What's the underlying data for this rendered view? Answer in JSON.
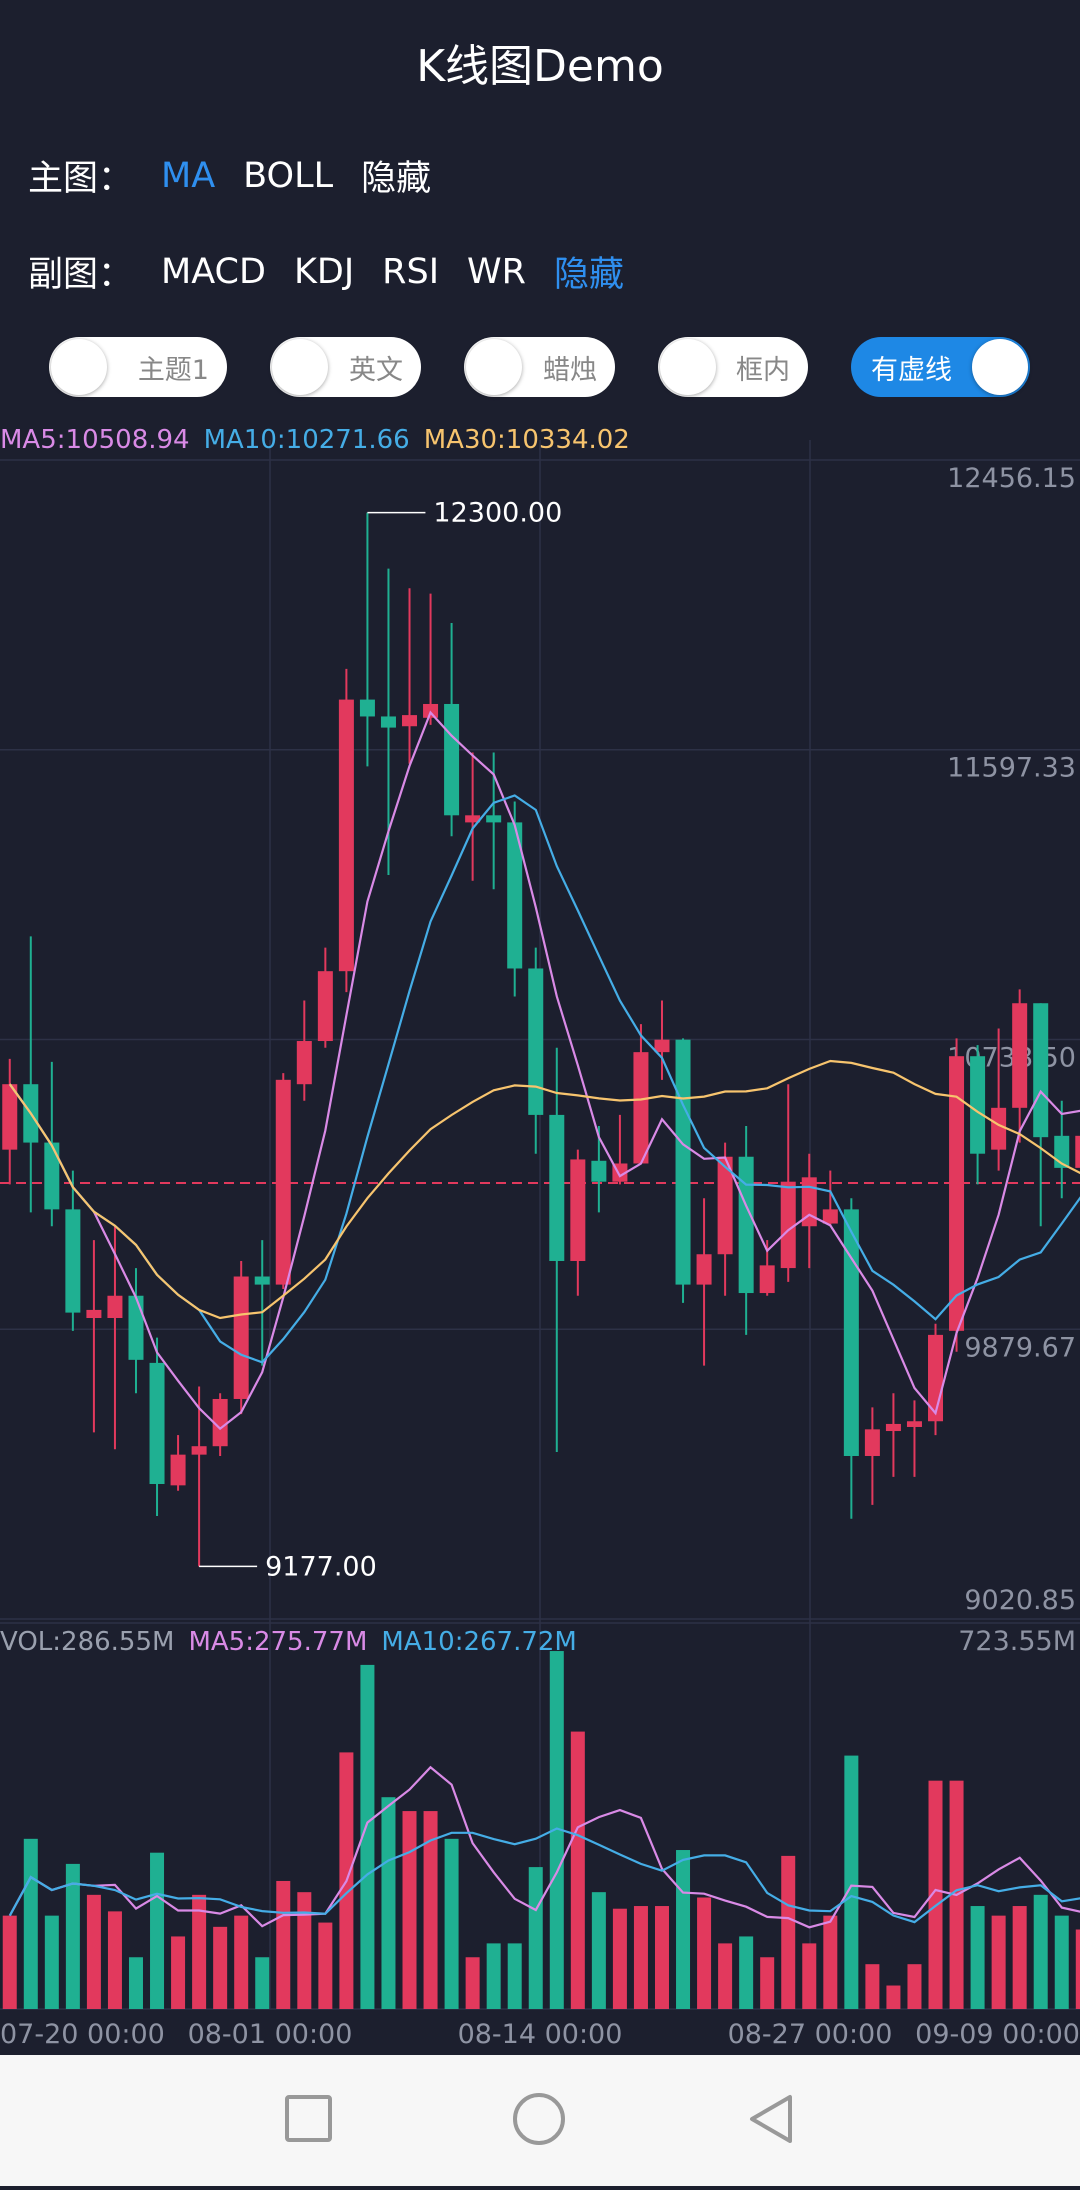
{
  "header": {
    "title": "K线图Demo"
  },
  "controls": {
    "main_row": {
      "label": "主图：",
      "options": [
        "MA",
        "BOLL",
        "隐藏"
      ],
      "active": 0
    },
    "sub_row": {
      "label": "副图：",
      "options": [
        "MACD",
        "KDJ",
        "RSI",
        "WR",
        "隐藏"
      ],
      "active": 4
    },
    "toggles": [
      {
        "label": "主题1",
        "on": false
      },
      {
        "label": "英文",
        "on": false
      },
      {
        "label": "蜡烛",
        "on": false
      },
      {
        "label": "框内",
        "on": false
      },
      {
        "label": "有虚线",
        "on": true
      }
    ]
  },
  "chart_data": {
    "type": "candlestick",
    "open": [
      10412,
      10606,
      10433,
      10235,
      9913,
      9913,
      9979,
      9780,
      9417,
      9508,
      9533,
      9673,
      10036,
      10012,
      10606,
      10734,
      10941,
      11746,
      11696,
      11667,
      11692,
      11733,
      11382,
      11403,
      11382,
      10949,
      10515,
      10082,
      10379,
      10317,
      10371,
      10701,
      10738,
      10012,
      10102,
      10391,
      9987,
      10061,
      10185,
      10193,
      10235,
      9504,
      9578,
      9590,
      9607,
      9875,
      10689,
      10412,
      10536,
      10846,
      10453,
      10358
    ],
    "high": [
      10681,
      11044,
      10672,
      10350,
      10144,
      10185,
      10061,
      9855,
      9566,
      9710,
      9690,
      10082,
      10144,
      10639,
      10854,
      11011,
      11837,
      12300,
      12134,
      12076,
      12060,
      11973,
      11589,
      11589,
      11444,
      11011,
      10714,
      10412,
      10482,
      10515,
      10784,
      10854,
      10742,
      10268,
      10433,
      10482,
      10144,
      10606,
      10400,
      10350,
      10268,
      9648,
      9690,
      9669,
      9896,
      10742,
      10722,
      10771,
      10887,
      10846,
      10557,
      10557
    ],
    "low": [
      10309,
      10226,
      10185,
      9875,
      9574,
      9524,
      9690,
      9326,
      9401,
      9177,
      9504,
      9628,
      9772,
      9999,
      10557,
      10714,
      10879,
      11548,
      11226,
      11556,
      11671,
      11341,
      11209,
      11184,
      10866,
      10400,
      9516,
      9979,
      10226,
      10309,
      10379,
      10619,
      9958,
      9772,
      9979,
      9863,
      9979,
      10020,
      10061,
      10185,
      9318,
      9359,
      9442,
      9442,
      9566,
      9813,
      10309,
      10350,
      10433,
      10185,
      10268,
      10309
    ],
    "close": [
      10606,
      10433,
      10235,
      9929,
      9937,
      9979,
      9789,
      9421,
      9508,
      9533,
      9673,
      10036,
      10012,
      10619,
      10734,
      10941,
      11746,
      11696,
      11663,
      11700,
      11733,
      11403,
      11403,
      11382,
      10949,
      10515,
      10082,
      10383,
      10317,
      10371,
      10701,
      10738,
      10012,
      10102,
      10391,
      9987,
      10069,
      10317,
      10330,
      10235,
      9504,
      9583,
      9599,
      9607,
      9863,
      10689,
      10400,
      10536,
      10846,
      10449,
      10358,
      10453
    ],
    "up_color": "#e2395d",
    "down_color": "#1fb092",
    "ylim": [
      9020.85,
      12456.15
    ],
    "yticks": [
      12456.15,
      11597.33,
      {
        "value": 10738.5,
        "label": "10738.50"
      },
      9879.67,
      9020.85
    ],
    "ma": [
      {
        "label": "MA5:10508.94",
        "period": 5,
        "color": "#d98ae6"
      },
      {
        "label": "MA10:10271.66",
        "period": 10,
        "color": "#45ade6"
      },
      {
        "label": "MA30:10334.02",
        "period": 30,
        "color": "#f7c46e"
      }
    ],
    "high_label": "12300.00",
    "low_label": "9177.00",
    "price_line": 10313,
    "x_labels": [
      "07-20 00:00",
      "08-01 00:00",
      "08-14 00:00",
      "08-27 00:00",
      "09-09 00:00"
    ],
    "volume": {
      "values": [
        175,
        319,
        175,
        272,
        214,
        183,
        97,
        293,
        136,
        214,
        154,
        175,
        97,
        240,
        219,
        162,
        481,
        645,
        397,
        371,
        371,
        319,
        97,
        123,
        123,
        266,
        671,
        520,
        219,
        188,
        193,
        193,
        298,
        209,
        123,
        136,
        97,
        287,
        123,
        175,
        475,
        84,
        44,
        84,
        428,
        428,
        193,
        175,
        193,
        214,
        175,
        149
      ],
      "ylim": [
        0,
        723.55
      ],
      "yticks": [
        {
          "value": 723.55,
          "label": "723.55M"
        }
      ],
      "legend": [
        {
          "label": "VOL:286.55M",
          "color": "#9aa0ae"
        },
        {
          "label": "MA5:275.77M",
          "period": 5,
          "color": "#d98ae6"
        },
        {
          "label": "MA10:267.72M",
          "period": 10,
          "color": "#45ade6"
        }
      ]
    }
  }
}
